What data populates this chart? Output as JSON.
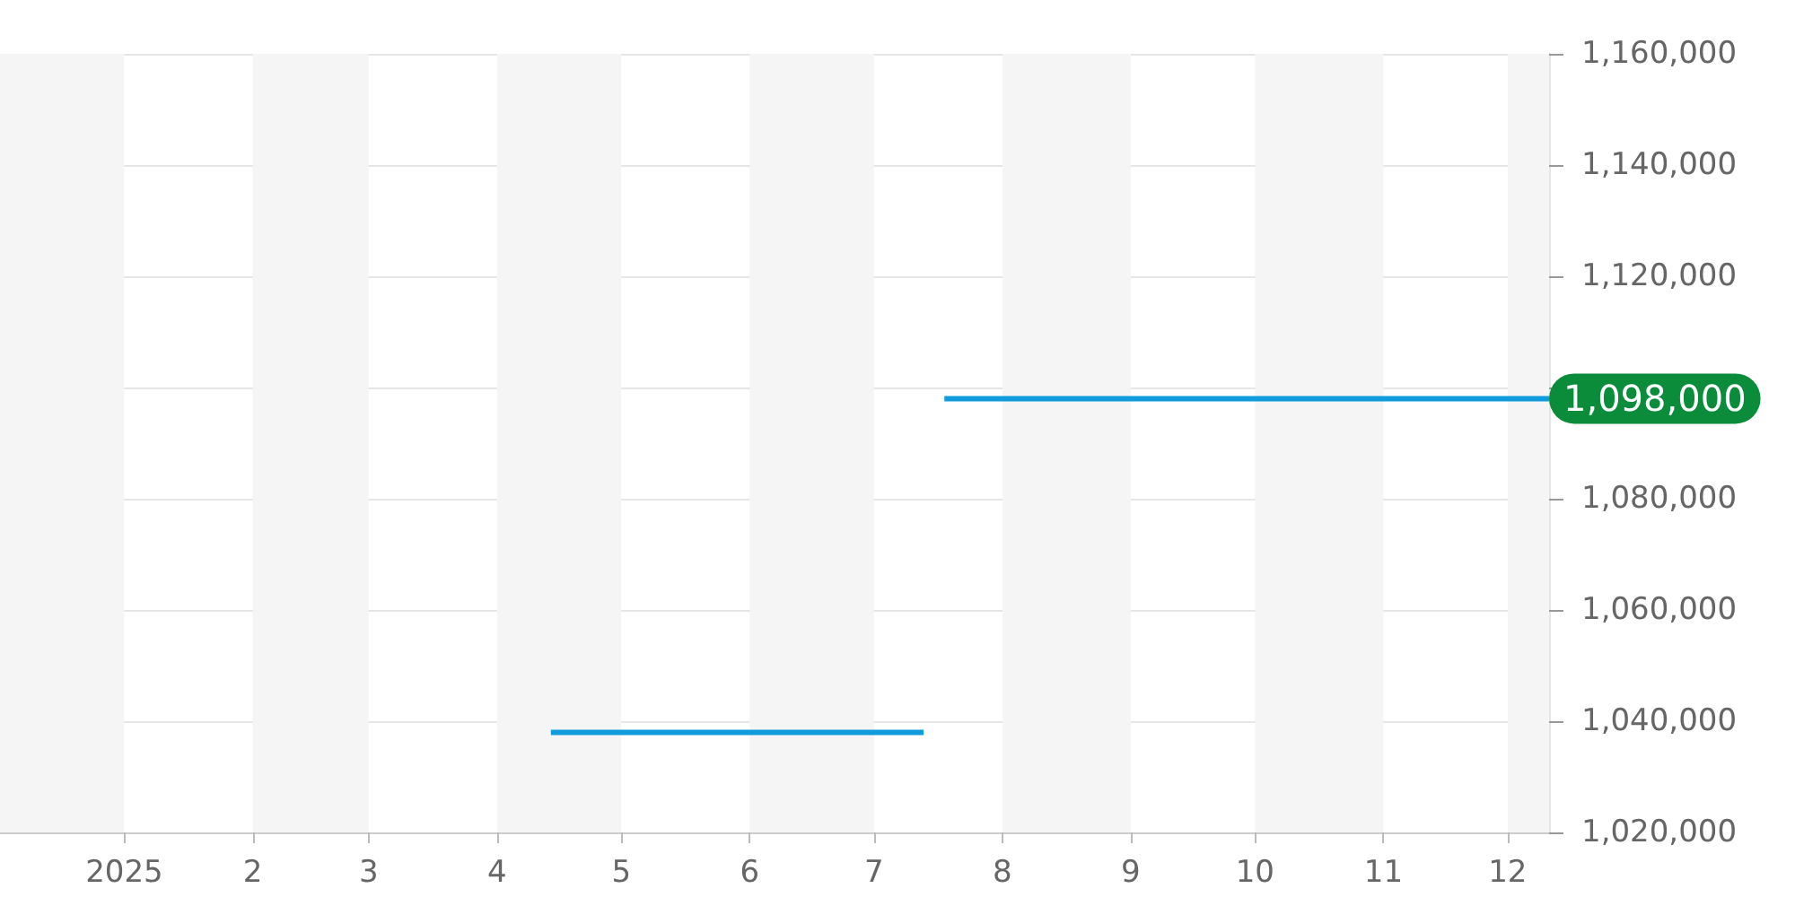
{
  "chart_data": {
    "type": "line",
    "x": [
      "2025-04-14",
      "2025-07-13",
      "2025-07-15",
      "2025-07-18",
      "2025-12-11"
    ],
    "series": [
      {
        "color": "#119bdc",
        "values": [
          1038000,
          1038000,
          null,
          1098000,
          1098000
        ]
      }
    ],
    "xlim": [
      "2024-12-02",
      "2025-12-11"
    ],
    "xticks": [
      {
        "value": "2025-01-01",
        "label": "2025"
      },
      {
        "value": "2025-02-01",
        "label": "2"
      },
      {
        "value": "2025-03-01",
        "label": "3"
      },
      {
        "value": "2025-04-01",
        "label": "4"
      },
      {
        "value": "2025-05-01",
        "label": "5"
      },
      {
        "value": "2025-06-01",
        "label": "6"
      },
      {
        "value": "2025-07-01",
        "label": "7"
      },
      {
        "value": "2025-08-01",
        "label": "8"
      },
      {
        "value": "2025-09-01",
        "label": "9"
      },
      {
        "value": "2025-10-01",
        "label": "10"
      },
      {
        "value": "2025-11-01",
        "label": "11"
      },
      {
        "value": "2025-12-01",
        "label": "12"
      }
    ],
    "ylim": [
      1020000,
      1160000
    ],
    "yticks": [
      {
        "value": 1020000,
        "label": "1,020,000"
      },
      {
        "value": 1040000,
        "label": "1,040,000"
      },
      {
        "value": 1060000,
        "label": "1,060,000"
      },
      {
        "value": 1080000,
        "label": "1,080,000"
      },
      {
        "value": 1100000,
        "label": null
      },
      {
        "value": 1120000,
        "label": "1,120,000"
      },
      {
        "value": 1140000,
        "label": "1,140,000"
      },
      {
        "value": 1160000,
        "label": "1,160,000"
      }
    ],
    "bands": [
      {
        "axis": "x",
        "from": "2024-12-02",
        "to": "2025-01-01",
        "color": "#f5f5f5"
      },
      {
        "axis": "x",
        "from": "2025-02-01",
        "to": "2025-03-01",
        "color": "#f5f5f5"
      },
      {
        "axis": "x",
        "from": "2025-04-01",
        "to": "2025-05-01",
        "color": "#f5f5f5"
      },
      {
        "axis": "x",
        "from": "2025-06-01",
        "to": "2025-07-01",
        "color": "#f5f5f5"
      },
      {
        "axis": "x",
        "from": "2025-08-01",
        "to": "2025-09-01",
        "color": "#f5f5f5"
      },
      {
        "axis": "x",
        "from": "2025-10-01",
        "to": "2025-11-01",
        "color": "#f5f5f5"
      },
      {
        "axis": "x",
        "from": "2025-12-01",
        "to": "2025-12-11",
        "color": "#f5f5f5"
      }
    ],
    "annotations": [
      {
        "text": "1,098,000",
        "x": "2025-12-11",
        "y": 1098000
      }
    ],
    "grid": "y",
    "marker": "none",
    "line_style": "solid"
  }
}
